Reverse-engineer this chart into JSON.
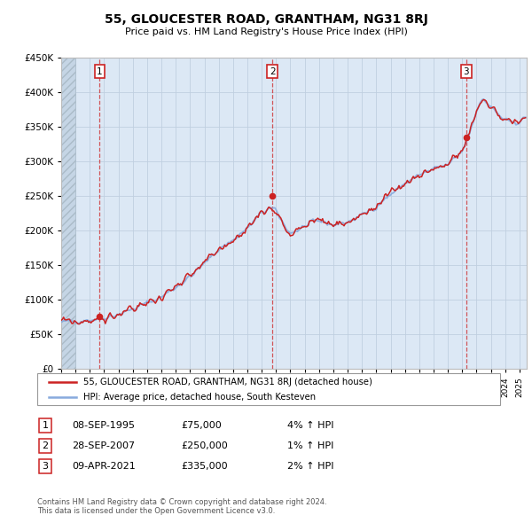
{
  "title": "55, GLOUCESTER ROAD, GRANTHAM, NG31 8RJ",
  "subtitle": "Price paid vs. HM Land Registry's House Price Index (HPI)",
  "legend_line1": "55, GLOUCESTER ROAD, GRANTHAM, NG31 8RJ (detached house)",
  "legend_line2": "HPI: Average price, detached house, South Kesteven",
  "transactions": [
    {
      "num": 1,
      "date": "08-SEP-1995",
      "price": 75000,
      "pct": "4%",
      "x_year": 1995.69
    },
    {
      "num": 2,
      "date": "28-SEP-2007",
      "price": 250000,
      "pct": "1%",
      "x_year": 2007.74
    },
    {
      "num": 3,
      "date": "09-APR-2021",
      "price": 335000,
      "pct": "2%",
      "x_year": 2021.27
    }
  ],
  "footnote1": "Contains HM Land Registry data © Crown copyright and database right 2024.",
  "footnote2": "This data is licensed under the Open Government Licence v3.0.",
  "hpi_color": "#88aadd",
  "price_color": "#cc2222",
  "background_chart": "#dce8f5",
  "hatch_color": "#c5d5e5",
  "grid_color": "#c0cfe0",
  "ylim": [
    0,
    450000
  ],
  "xlim_start": 1993.0,
  "xlim_end": 2025.5,
  "anchors_hpi": [
    [
      1993.0,
      67000
    ],
    [
      1994.0,
      69000
    ],
    [
      1995.0,
      71000
    ],
    [
      1995.7,
      72000
    ],
    [
      1996.0,
      74000
    ],
    [
      1997.0,
      79000
    ],
    [
      1998.0,
      86000
    ],
    [
      1999.0,
      95000
    ],
    [
      2000.0,
      104000
    ],
    [
      2001.0,
      118000
    ],
    [
      2002.0,
      133000
    ],
    [
      2003.0,
      152000
    ],
    [
      2004.0,
      173000
    ],
    [
      2005.0,
      186000
    ],
    [
      2006.0,
      203000
    ],
    [
      2007.0,
      225000
    ],
    [
      2007.5,
      232000
    ],
    [
      2008.0,
      228000
    ],
    [
      2008.5,
      210000
    ],
    [
      2009.0,
      196000
    ],
    [
      2009.5,
      200000
    ],
    [
      2010.0,
      206000
    ],
    [
      2011.0,
      214000
    ],
    [
      2012.0,
      208000
    ],
    [
      2013.0,
      212000
    ],
    [
      2014.0,
      222000
    ],
    [
      2015.0,
      235000
    ],
    [
      2016.0,
      252000
    ],
    [
      2017.0,
      268000
    ],
    [
      2018.0,
      280000
    ],
    [
      2019.0,
      288000
    ],
    [
      2020.0,
      295000
    ],
    [
      2021.0,
      315000
    ],
    [
      2021.5,
      340000
    ],
    [
      2022.0,
      375000
    ],
    [
      2022.5,
      390000
    ],
    [
      2023.0,
      378000
    ],
    [
      2023.5,
      368000
    ],
    [
      2024.0,
      358000
    ],
    [
      2024.5,
      355000
    ],
    [
      2025.0,
      358000
    ],
    [
      2025.4,
      362000
    ]
  ],
  "seed_hpi": 42,
  "seed_price": 99,
  "noise_hpi": 3500,
  "noise_price": 4000
}
